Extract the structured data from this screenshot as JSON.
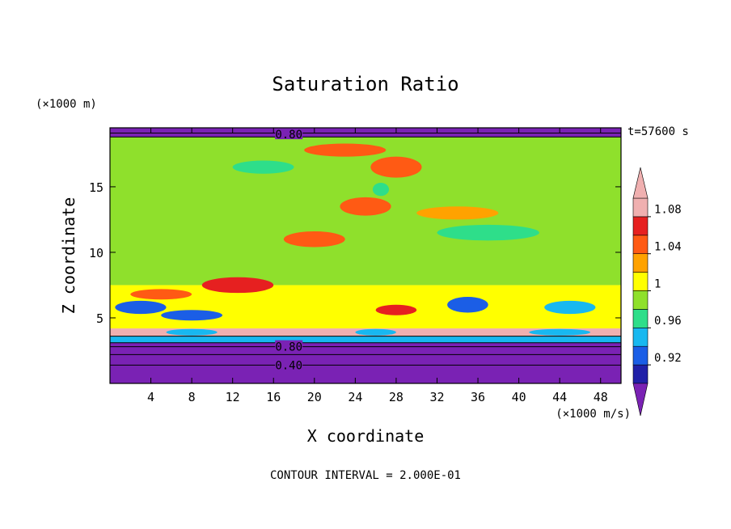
{
  "chart_data": {
    "type": "heatmap",
    "title": "Saturation Ratio",
    "xlabel": "X coordinate",
    "ylabel": "Z coordinate",
    "x_unit": "(×1000 m/s)",
    "y_unit": "(×1000 m)",
    "time_label": "t=57600 s",
    "footer": "CONTOUR INTERVAL = 2.000E-01",
    "xlim": [
      0,
      50
    ],
    "ylim": [
      0,
      19.5
    ],
    "x_ticks": [
      4,
      8,
      12,
      16,
      20,
      24,
      28,
      32,
      36,
      40,
      44,
      48
    ],
    "y_ticks": [
      5,
      10,
      15
    ],
    "contour_labels": [
      {
        "text": "0.80",
        "x": 17.5,
        "y": 19.0
      },
      {
        "text": "0.80",
        "x": 17.5,
        "y": 2.8
      },
      {
        "text": "0.40",
        "x": 17.5,
        "y": 1.4
      }
    ],
    "colorbar": {
      "levels": [
        0.9,
        0.92,
        0.94,
        0.96,
        0.98,
        1.0,
        1.02,
        1.04,
        1.06,
        1.08,
        1.1
      ],
      "tick_labels": [
        {
          "value": 0.92,
          "text": "0.92"
        },
        {
          "value": 0.96,
          "text": "0.96"
        },
        {
          "value": 1.0,
          "text": "1"
        },
        {
          "value": 1.04,
          "text": "1.04"
        },
        {
          "value": 1.08,
          "text": "1.08"
        }
      ],
      "colors": [
        "#7a22b4",
        "#2020a8",
        "#1b5ee6",
        "#18b8f0",
        "#2ede8a",
        "#8fe02c",
        "#ffff00",
        "#ffa200",
        "#ff5a14",
        "#e62020",
        "#f0b0b0"
      ],
      "extend": "both"
    },
    "bands": [
      {
        "z_min": 0.0,
        "z_max": 3.1,
        "value": 0.4
      },
      {
        "z_min": 3.1,
        "z_max": 3.6,
        "value": 0.95
      },
      {
        "z_min": 3.6,
        "z_max": 4.2,
        "value": 1.09
      },
      {
        "z_min": 4.2,
        "z_max": 7.5,
        "value": 1.0
      },
      {
        "z_min": 7.5,
        "z_max": 18.8,
        "value": 0.99
      },
      {
        "z_min": 18.8,
        "z_max": 19.5,
        "value": 0.6
      }
    ],
    "features": [
      {
        "x": 3,
        "y": 5.8,
        "rx": 2.5,
        "ry": 0.5,
        "value": 0.92
      },
      {
        "x": 8,
        "y": 5.2,
        "rx": 3,
        "ry": 0.4,
        "value": 0.93
      },
      {
        "x": 12.5,
        "y": 7.5,
        "rx": 3.5,
        "ry": 0.6,
        "value": 1.06
      },
      {
        "x": 5,
        "y": 6.8,
        "rx": 3,
        "ry": 0.4,
        "value": 1.05
      },
      {
        "x": 35,
        "y": 6.0,
        "rx": 2,
        "ry": 0.6,
        "value": 0.92
      },
      {
        "x": 28,
        "y": 5.6,
        "rx": 2,
        "ry": 0.4,
        "value": 1.06
      },
      {
        "x": 45,
        "y": 5.8,
        "rx": 2.5,
        "ry": 0.5,
        "value": 0.94
      },
      {
        "x": 20,
        "y": 11.0,
        "rx": 3,
        "ry": 0.6,
        "value": 1.04
      },
      {
        "x": 25,
        "y": 13.5,
        "rx": 2.5,
        "ry": 0.7,
        "value": 1.04
      },
      {
        "x": 28,
        "y": 16.5,
        "rx": 2.5,
        "ry": 0.8,
        "value": 1.04
      },
      {
        "x": 37,
        "y": 11.5,
        "rx": 5,
        "ry": 0.6,
        "value": 0.97
      },
      {
        "x": 34,
        "y": 13.0,
        "rx": 4,
        "ry": 0.5,
        "value": 1.02
      },
      {
        "x": 15,
        "y": 16.5,
        "rx": 3,
        "ry": 0.5,
        "value": 0.97
      },
      {
        "x": 26.5,
        "y": 14.8,
        "rx": 0.8,
        "ry": 0.5,
        "value": 0.96
      },
      {
        "x": 23,
        "y": 17.8,
        "rx": 4,
        "ry": 0.5,
        "value": 1.04
      },
      {
        "x": 8,
        "y": 3.9,
        "rx": 2.5,
        "ry": 0.25,
        "value": 0.94
      },
      {
        "x": 26,
        "y": 3.9,
        "rx": 2,
        "ry": 0.25,
        "value": 0.94
      },
      {
        "x": 44,
        "y": 3.9,
        "rx": 3,
        "ry": 0.25,
        "value": 0.94
      }
    ]
  }
}
